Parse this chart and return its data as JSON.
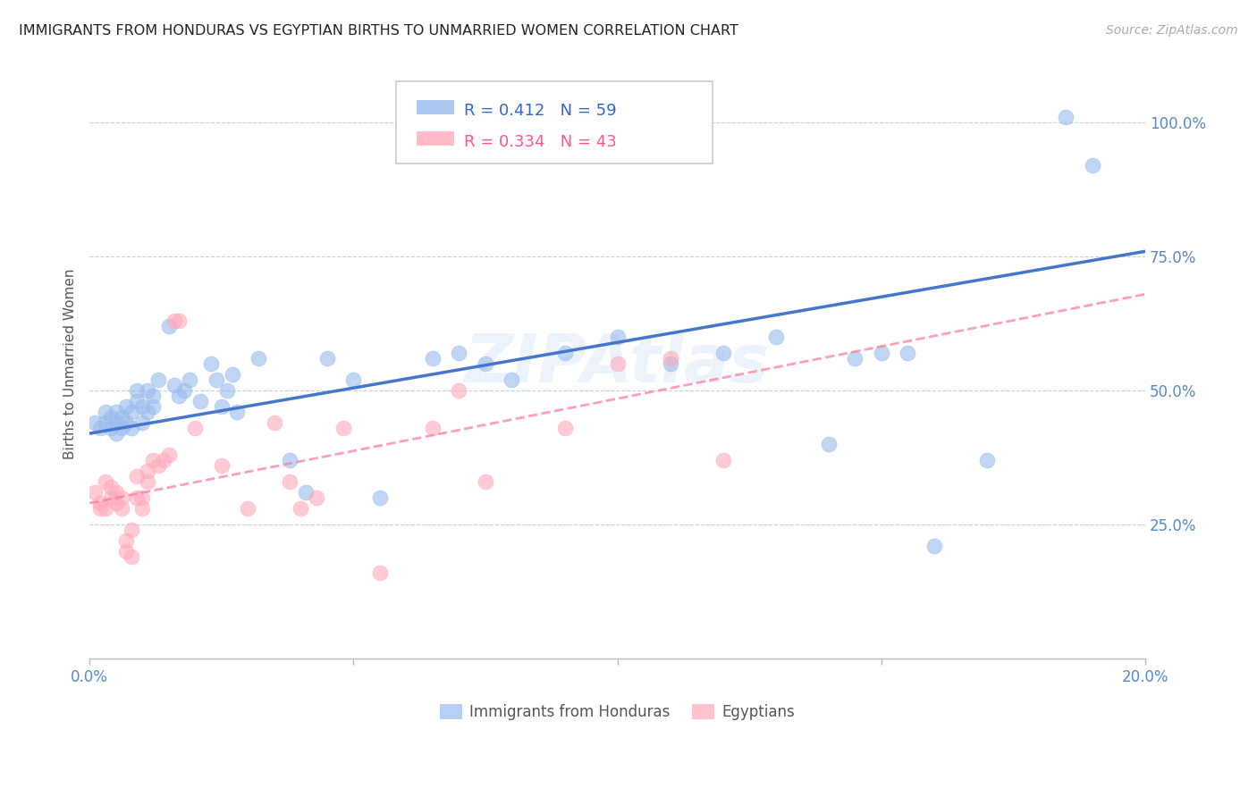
{
  "title": "IMMIGRANTS FROM HONDURAS VS EGYPTIAN BIRTHS TO UNMARRIED WOMEN CORRELATION CHART",
  "source": "Source: ZipAtlas.com",
  "ylabel": "Births to Unmarried Women",
  "legend_blue_r": "R = 0.412",
  "legend_blue_n": "N = 59",
  "legend_pink_r": "R = 0.334",
  "legend_pink_n": "N = 43",
  "legend_label_blue": "Immigrants from Honduras",
  "legend_label_pink": "Egyptians",
  "blue_color": "#99BBEE",
  "pink_color": "#FFAABB",
  "line_blue_color": "#4477CC",
  "line_pink_color": "#FF7799",
  "watermark": "ZIPAtlas",
  "blue_x": [
    0.001,
    0.002,
    0.003,
    0.003,
    0.004,
    0.004,
    0.005,
    0.005,
    0.005,
    0.006,
    0.006,
    0.007,
    0.007,
    0.008,
    0.008,
    0.009,
    0.009,
    0.01,
    0.01,
    0.011,
    0.011,
    0.012,
    0.012,
    0.013,
    0.015,
    0.016,
    0.017,
    0.018,
    0.019,
    0.021,
    0.023,
    0.024,
    0.025,
    0.026,
    0.027,
    0.028,
    0.032,
    0.038,
    0.041,
    0.045,
    0.05,
    0.055,
    0.065,
    0.07,
    0.075,
    0.08,
    0.09,
    0.1,
    0.11,
    0.12,
    0.13,
    0.14,
    0.145,
    0.15,
    0.155,
    0.16,
    0.17,
    0.185,
    0.19
  ],
  "blue_y": [
    0.44,
    0.43,
    0.44,
    0.46,
    0.43,
    0.45,
    0.42,
    0.44,
    0.46,
    0.43,
    0.45,
    0.47,
    0.44,
    0.43,
    0.46,
    0.48,
    0.5,
    0.44,
    0.47,
    0.46,
    0.5,
    0.47,
    0.49,
    0.52,
    0.62,
    0.51,
    0.49,
    0.5,
    0.52,
    0.48,
    0.55,
    0.52,
    0.47,
    0.5,
    0.53,
    0.46,
    0.56,
    0.37,
    0.31,
    0.56,
    0.52,
    0.3,
    0.56,
    0.57,
    0.55,
    0.52,
    0.57,
    0.6,
    0.55,
    0.57,
    0.6,
    0.4,
    0.56,
    0.57,
    0.57,
    0.21,
    0.37,
    1.01,
    0.92
  ],
  "pink_x": [
    0.001,
    0.002,
    0.002,
    0.003,
    0.003,
    0.004,
    0.004,
    0.005,
    0.005,
    0.006,
    0.006,
    0.007,
    0.007,
    0.008,
    0.008,
    0.009,
    0.009,
    0.01,
    0.01,
    0.011,
    0.011,
    0.012,
    0.013,
    0.014,
    0.015,
    0.016,
    0.017,
    0.02,
    0.025,
    0.03,
    0.035,
    0.038,
    0.04,
    0.043,
    0.048,
    0.055,
    0.065,
    0.07,
    0.075,
    0.09,
    0.1,
    0.11,
    0.12
  ],
  "pink_y": [
    0.31,
    0.28,
    0.29,
    0.28,
    0.33,
    0.3,
    0.32,
    0.31,
    0.29,
    0.3,
    0.28,
    0.22,
    0.2,
    0.24,
    0.19,
    0.34,
    0.3,
    0.28,
    0.3,
    0.33,
    0.35,
    0.37,
    0.36,
    0.37,
    0.38,
    0.63,
    0.63,
    0.43,
    0.36,
    0.28,
    0.44,
    0.33,
    0.28,
    0.3,
    0.43,
    0.16,
    0.43,
    0.5,
    0.33,
    0.43,
    0.55,
    0.56,
    0.37
  ],
  "xlim": [
    0.0,
    0.2
  ],
  "ylim": [
    0.0,
    1.1
  ],
  "y_tick_vals": [
    0.25,
    0.5,
    0.75,
    1.0
  ],
  "blue_line_x": [
    0.0,
    0.2
  ],
  "blue_line_y": [
    0.42,
    0.76
  ],
  "pink_line_x": [
    0.0,
    0.2
  ],
  "pink_line_y": [
    0.29,
    0.68
  ]
}
